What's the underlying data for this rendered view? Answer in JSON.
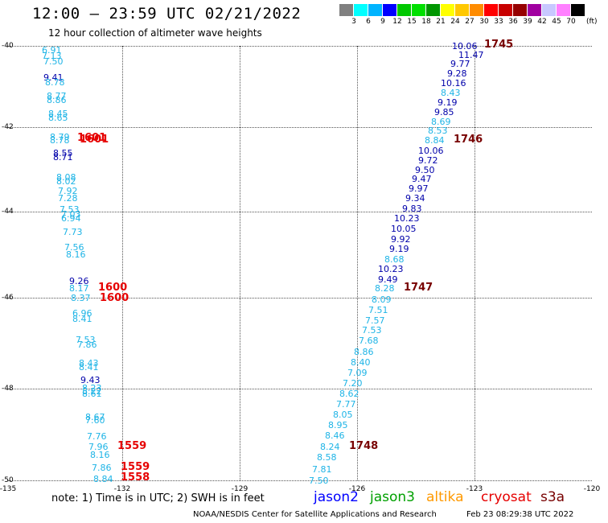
{
  "header": {
    "title": "12:00 – 23:59 UTC 02/21/2022",
    "subtitle": "12 hour collection of altimeter wave heights"
  },
  "colorbar": {
    "colors": [
      "#808080",
      "#00ffff",
      "#00b4ff",
      "#0000ff",
      "#00c800",
      "#00e000",
      "#009600",
      "#ffff00",
      "#ffc800",
      "#ff8c00",
      "#ff0000",
      "#c80000",
      "#960000",
      "#a000a0",
      "#c8c8ff",
      "#ff80ff",
      "#000000"
    ],
    "ticks": [
      "3",
      "6",
      "9",
      "12",
      "15",
      "18",
      "21",
      "24",
      "27",
      "30",
      "33",
      "36",
      "39",
      "42",
      "45",
      "70"
    ],
    "unit": "(ft)"
  },
  "map": {
    "lat_labels": [
      "-40",
      "-42",
      "-44",
      "-46",
      "-48",
      "-50"
    ],
    "lon_labels": [
      "-135",
      "-132",
      "-129",
      "-126",
      "-123",
      "-120"
    ],
    "colors": {
      "dark_blue": "#0000aa",
      "light_blue": "#1eb4e6",
      "red": "#e60000",
      "maroon": "#780000"
    },
    "tracks": [
      {
        "color": "light_blue",
        "values": [
          "6.91",
          "7.13",
          "7.50"
        ],
        "times": []
      },
      {
        "color": "dark_blue",
        "values": [
          "9.41"
        ],
        "times": []
      },
      {
        "color": "light_blue",
        "values": [
          "8.78",
          "8.77",
          "8.86",
          "8.45",
          "8.65",
          "8.79",
          "8.78"
        ]
      },
      {
        "color": "dark_blue",
        "values": [
          "8.55",
          "8.71"
        ]
      },
      {
        "color": "light_blue",
        "values": [
          "8.08",
          "8.02",
          "7.92",
          "7.28",
          "7.53",
          "7.03",
          "6.94",
          "7.73",
          "7.56",
          "8.16"
        ]
      },
      {
        "color": "dark_blue",
        "values": [
          "9.26"
        ]
      },
      {
        "color": "light_blue",
        "values": [
          "8.17",
          "8.37",
          "6.96",
          "8.41",
          "7.53",
          "7.86",
          "8.43",
          "8.41"
        ]
      },
      {
        "color": "dark_blue",
        "values": [
          "9.43"
        ]
      },
      {
        "color": "light_blue",
        "values": [
          "8.23",
          "8.22",
          "8.61",
          "8.67",
          "7.60",
          "7.76",
          "7.96",
          "8.16",
          "7.86",
          "8.84"
        ]
      },
      {
        "color": "dark_blue",
        "values": [
          "10.06",
          "11.47",
          "9.77",
          "9.28",
          "10.16"
        ]
      },
      {
        "color": "light_blue",
        "values": [
          "8.43"
        ]
      },
      {
        "color": "dark_blue",
        "values": [
          "9.19",
          "9.85"
        ]
      },
      {
        "color": "light_blue",
        "values": [
          "8.69",
          "8.53",
          "8.84"
        ]
      },
      {
        "color": "dark_blue",
        "values": [
          "10.06",
          "9.72",
          "9.50",
          "9.47",
          "9.97",
          "9.34",
          "9.83",
          "10.23",
          "10.05",
          "9.92",
          "9.19"
        ]
      },
      {
        "color": "light_blue",
        "values": [
          "8.68"
        ]
      },
      {
        "color": "dark_blue",
        "values": [
          "10.23",
          "9.49"
        ]
      },
      {
        "color": "light_blue",
        "values": [
          "8.28",
          "8.09",
          "7.51",
          "7.57",
          "7.53",
          "7.68",
          "8.86",
          "8.40",
          "7.09",
          "7.20",
          "8.62",
          "7.77",
          "8.05",
          "8.95",
          "8.46",
          "8.24",
          "8.58",
          "7.81",
          "7.50"
        ]
      }
    ],
    "time_labels": [
      "1601",
      "1601",
      "1600",
      "1600",
      "1559",
      "1559",
      "1558",
      "1745",
      "1746",
      "1747",
      "1748"
    ]
  },
  "footer": {
    "note": "note:  1) Time is in UTC;  2) SWH is in feet",
    "satellites": [
      "jason2",
      "jason3",
      "altika",
      "cryosat",
      "s3a"
    ],
    "satellite_colors": [
      "#0000ff",
      "#00a000",
      "#ff9900",
      "#e60000",
      "#780000"
    ],
    "credit": "NOAA/NESDIS Center for Satellite Applications and Research",
    "timestamp": "Feb 23 08:29:38 UTC 2022"
  }
}
